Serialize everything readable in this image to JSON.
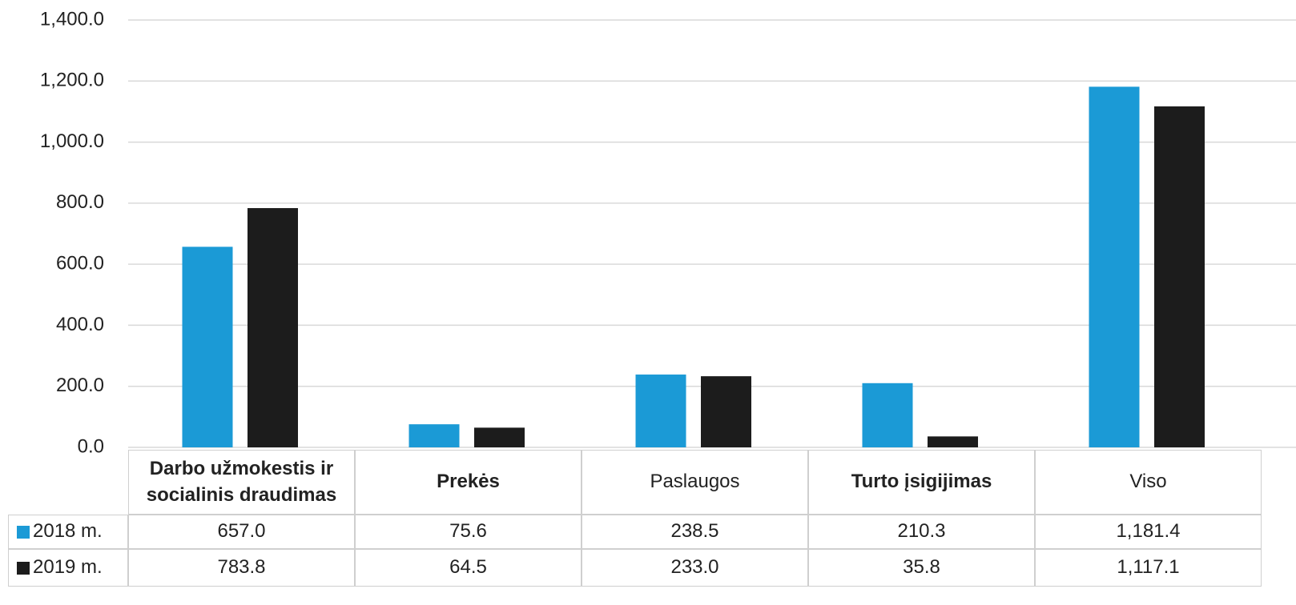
{
  "chart_data": {
    "type": "bar",
    "categories": [
      "Darbo užmokestis ir socialinis draudimas",
      "Prekės",
      "Paslaugos",
      "Turto įsigijimas",
      "Viso"
    ],
    "series": [
      {
        "name": "2018 m.",
        "color": "#1b9ad6",
        "values": [
          657.0,
          75.6,
          238.5,
          210.3,
          1181.4
        ],
        "value_labels": [
          "657.0",
          "75.6",
          "238.5",
          "210.3",
          "1,181.4"
        ]
      },
      {
        "name": "2019 m.",
        "color": "#1c1c1c",
        "values": [
          783.8,
          64.5,
          233.0,
          35.8,
          1117.1
        ],
        "value_labels": [
          "783.8",
          "64.5",
          "233.0",
          "35.8",
          "1,117.1"
        ]
      }
    ],
    "ylim": [
      0,
      1400
    ],
    "yticks": [
      {
        "value": 0,
        "label": "0.0"
      },
      {
        "value": 200,
        "label": "200.0"
      },
      {
        "value": 400,
        "label": "400.0"
      },
      {
        "value": 600,
        "label": "600.0"
      },
      {
        "value": 800,
        "label": "800.0"
      },
      {
        "value": 1000,
        "label": "1,000.0"
      },
      {
        "value": 1200,
        "label": "1,200.0"
      },
      {
        "value": 1400,
        "label": "1,400.0"
      }
    ],
    "grid": true
  }
}
